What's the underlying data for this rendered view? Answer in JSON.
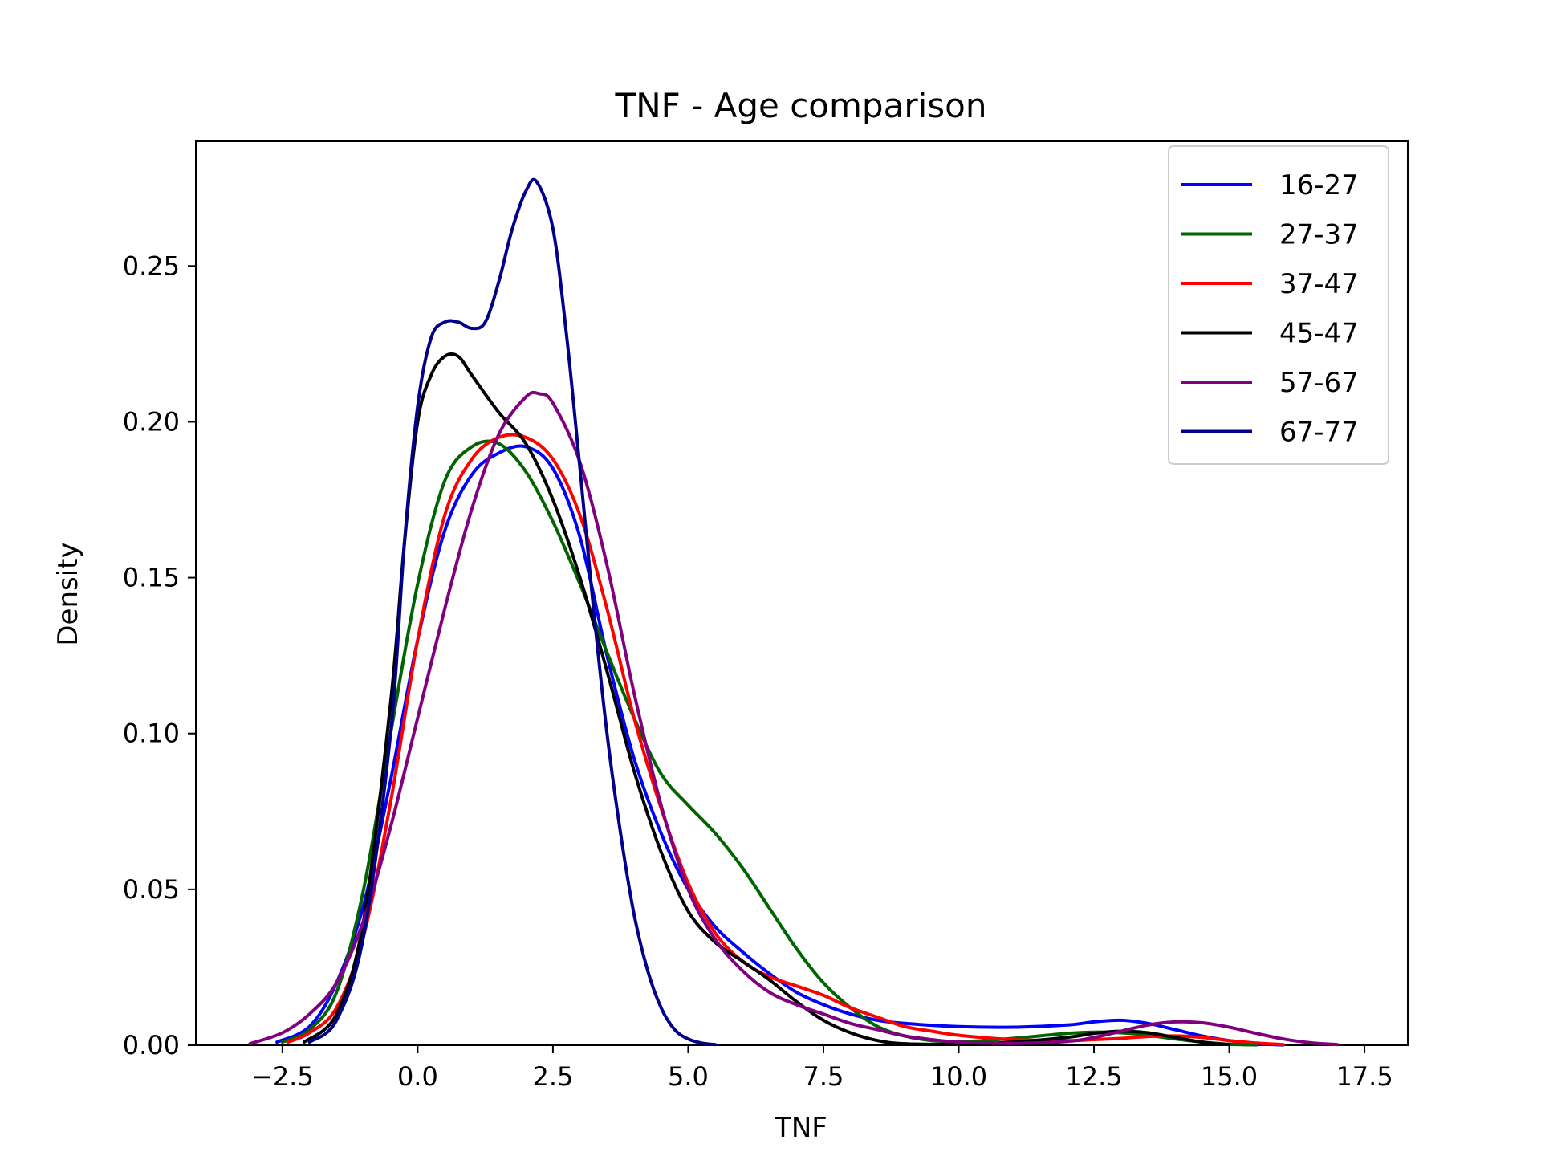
{
  "chart_data": {
    "type": "line",
    "title": "TNF - Age comparison",
    "xlabel": "TNF",
    "ylabel": "Density",
    "xlim": [
      -4.1,
      18.3
    ],
    "ylim": [
      0,
      0.29
    ],
    "xticks": [
      -2.5,
      0.0,
      2.5,
      5.0,
      7.5,
      10.0,
      12.5,
      15.0,
      17.5
    ],
    "xtick_labels": [
      "−2.5",
      "0.0",
      "2.5",
      "5.0",
      "7.5",
      "10.0",
      "12.5",
      "15.0",
      "17.5"
    ],
    "yticks": [
      0.0,
      0.05,
      0.1,
      0.15,
      0.2,
      0.25
    ],
    "ytick_labels": [
      "0.00",
      "0.05",
      "0.10",
      "0.15",
      "0.20",
      "0.25"
    ],
    "grid": false,
    "legend_position": "top-right",
    "series": [
      {
        "name": "16-27",
        "color": "#0000ff",
        "points": [
          [
            -2.6,
            0.001
          ],
          [
            -2.0,
            0.006
          ],
          [
            -1.5,
            0.02
          ],
          [
            -1.0,
            0.045
          ],
          [
            -0.5,
            0.085
          ],
          [
            0.0,
            0.13
          ],
          [
            0.5,
            0.165
          ],
          [
            1.0,
            0.183
          ],
          [
            1.5,
            0.19
          ],
          [
            2.0,
            0.192
          ],
          [
            2.5,
            0.185
          ],
          [
            3.0,
            0.163
          ],
          [
            3.5,
            0.125
          ],
          [
            4.0,
            0.092
          ],
          [
            4.5,
            0.068
          ],
          [
            5.0,
            0.05
          ],
          [
            5.5,
            0.038
          ],
          [
            6.0,
            0.03
          ],
          [
            6.5,
            0.023
          ],
          [
            7.0,
            0.017
          ],
          [
            7.5,
            0.013
          ],
          [
            8.0,
            0.01
          ],
          [
            8.5,
            0.008
          ],
          [
            9.0,
            0.007
          ],
          [
            10.0,
            0.006
          ],
          [
            11.0,
            0.0058
          ],
          [
            12.0,
            0.0065
          ],
          [
            12.5,
            0.0075
          ],
          [
            13.0,
            0.008
          ],
          [
            13.5,
            0.007
          ],
          [
            14.0,
            0.005
          ],
          [
            14.5,
            0.003
          ],
          [
            15.0,
            0.0015
          ],
          [
            15.5,
            0.0005
          ],
          [
            16.0,
            0.0001
          ]
        ]
      },
      {
        "name": "27-37",
        "color": "#006400",
        "points": [
          [
            -2.5,
            0.001
          ],
          [
            -2.0,
            0.005
          ],
          [
            -1.5,
            0.017
          ],
          [
            -1.0,
            0.05
          ],
          [
            -0.5,
            0.1
          ],
          [
            0.0,
            0.148
          ],
          [
            0.5,
            0.181
          ],
          [
            1.0,
            0.192
          ],
          [
            1.5,
            0.193
          ],
          [
            2.0,
            0.184
          ],
          [
            2.5,
            0.168
          ],
          [
            3.0,
            0.148
          ],
          [
            3.5,
            0.126
          ],
          [
            4.0,
            0.105
          ],
          [
            4.5,
            0.087
          ],
          [
            5.0,
            0.077
          ],
          [
            5.5,
            0.068
          ],
          [
            6.0,
            0.057
          ],
          [
            6.5,
            0.044
          ],
          [
            7.0,
            0.031
          ],
          [
            7.5,
            0.02
          ],
          [
            8.0,
            0.012
          ],
          [
            8.5,
            0.006
          ],
          [
            9.0,
            0.003
          ],
          [
            9.5,
            0.0015
          ],
          [
            10.0,
            0.0012
          ],
          [
            10.5,
            0.0015
          ],
          [
            11.0,
            0.0022
          ],
          [
            11.5,
            0.003
          ],
          [
            12.0,
            0.0038
          ],
          [
            12.5,
            0.0042
          ],
          [
            13.0,
            0.004
          ],
          [
            13.5,
            0.0032
          ],
          [
            14.0,
            0.002
          ],
          [
            14.5,
            0.001
          ],
          [
            15.0,
            0.0003
          ],
          [
            15.5,
            0.0001
          ]
        ]
      },
      {
        "name": "37-47",
        "color": "#ff0000",
        "points": [
          [
            -2.4,
            0.001
          ],
          [
            -2.0,
            0.004
          ],
          [
            -1.5,
            0.012
          ],
          [
            -1.0,
            0.035
          ],
          [
            -0.5,
            0.078
          ],
          [
            0.0,
            0.13
          ],
          [
            0.5,
            0.17
          ],
          [
            1.0,
            0.188
          ],
          [
            1.5,
            0.195
          ],
          [
            2.0,
            0.195
          ],
          [
            2.5,
            0.188
          ],
          [
            3.0,
            0.17
          ],
          [
            3.5,
            0.14
          ],
          [
            4.0,
            0.105
          ],
          [
            4.5,
            0.076
          ],
          [
            5.0,
            0.052
          ],
          [
            5.5,
            0.036
          ],
          [
            6.0,
            0.027
          ],
          [
            6.5,
            0.022
          ],
          [
            7.0,
            0.019
          ],
          [
            7.5,
            0.016
          ],
          [
            8.0,
            0.012
          ],
          [
            8.5,
            0.009
          ],
          [
            9.0,
            0.006
          ],
          [
            9.5,
            0.0045
          ],
          [
            10.0,
            0.0032
          ],
          [
            11.0,
            0.0018
          ],
          [
            12.0,
            0.0015
          ],
          [
            12.5,
            0.0018
          ],
          [
            13.0,
            0.0022
          ],
          [
            13.5,
            0.0028
          ],
          [
            14.0,
            0.003
          ],
          [
            14.5,
            0.0025
          ],
          [
            15.0,
            0.0015
          ],
          [
            15.5,
            0.0007
          ],
          [
            16.0,
            0.0002
          ]
        ]
      },
      {
        "name": "45-47",
        "color": "#000000",
        "points": [
          [
            -2.1,
            0.001
          ],
          [
            -1.5,
            0.01
          ],
          [
            -1.0,
            0.04
          ],
          [
            -0.5,
            0.11
          ],
          [
            -0.25,
            0.16
          ],
          [
            0.0,
            0.2
          ],
          [
            0.25,
            0.215
          ],
          [
            0.5,
            0.221
          ],
          [
            0.75,
            0.221
          ],
          [
            1.0,
            0.215
          ],
          [
            1.5,
            0.203
          ],
          [
            2.0,
            0.193
          ],
          [
            2.5,
            0.175
          ],
          [
            3.0,
            0.15
          ],
          [
            3.5,
            0.12
          ],
          [
            4.0,
            0.088
          ],
          [
            4.5,
            0.062
          ],
          [
            5.0,
            0.043
          ],
          [
            5.5,
            0.033
          ],
          [
            6.0,
            0.027
          ],
          [
            6.5,
            0.021
          ],
          [
            7.0,
            0.014
          ],
          [
            7.5,
            0.008
          ],
          [
            8.0,
            0.004
          ],
          [
            8.5,
            0.0015
          ],
          [
            9.0,
            0.0005
          ],
          [
            10.0,
            0.0003
          ],
          [
            11.0,
            0.001
          ],
          [
            12.0,
            0.0025
          ],
          [
            12.5,
            0.0038
          ],
          [
            13.0,
            0.0045
          ],
          [
            13.5,
            0.004
          ],
          [
            14.0,
            0.0025
          ],
          [
            14.5,
            0.001
          ],
          [
            15.0,
            0.0002
          ]
        ]
      },
      {
        "name": "57-67",
        "color": "#800080",
        "points": [
          [
            -3.1,
            0.0005
          ],
          [
            -2.5,
            0.004
          ],
          [
            -2.0,
            0.01
          ],
          [
            -1.5,
            0.02
          ],
          [
            -1.0,
            0.04
          ],
          [
            -0.5,
            0.07
          ],
          [
            0.0,
            0.105
          ],
          [
            0.5,
            0.14
          ],
          [
            1.0,
            0.172
          ],
          [
            1.5,
            0.196
          ],
          [
            2.0,
            0.208
          ],
          [
            2.25,
            0.209
          ],
          [
            2.5,
            0.206
          ],
          [
            3.0,
            0.187
          ],
          [
            3.5,
            0.154
          ],
          [
            4.0,
            0.113
          ],
          [
            4.5,
            0.077
          ],
          [
            5.0,
            0.05
          ],
          [
            5.5,
            0.034
          ],
          [
            6.0,
            0.024
          ],
          [
            6.5,
            0.017
          ],
          [
            7.0,
            0.013
          ],
          [
            7.5,
            0.01
          ],
          [
            8.0,
            0.007
          ],
          [
            8.5,
            0.005
          ],
          [
            9.0,
            0.003
          ],
          [
            9.5,
            0.0018
          ],
          [
            10.0,
            0.001
          ],
          [
            11.0,
            0.0006
          ],
          [
            12.0,
            0.0012
          ],
          [
            12.5,
            0.0025
          ],
          [
            13.0,
            0.0045
          ],
          [
            13.5,
            0.0065
          ],
          [
            14.0,
            0.0075
          ],
          [
            14.5,
            0.0072
          ],
          [
            15.0,
            0.0058
          ],
          [
            15.5,
            0.0038
          ],
          [
            16.0,
            0.002
          ],
          [
            16.5,
            0.0008
          ],
          [
            17.0,
            0.0002
          ]
        ]
      },
      {
        "name": "67-77",
        "color": "#00008b",
        "points": [
          [
            -2.0,
            0.001
          ],
          [
            -1.5,
            0.008
          ],
          [
            -1.0,
            0.035
          ],
          [
            -0.5,
            0.1
          ],
          [
            -0.25,
            0.16
          ],
          [
            0.0,
            0.205
          ],
          [
            0.25,
            0.227
          ],
          [
            0.5,
            0.232
          ],
          [
            0.75,
            0.232
          ],
          [
            1.0,
            0.23
          ],
          [
            1.25,
            0.232
          ],
          [
            1.5,
            0.245
          ],
          [
            1.75,
            0.262
          ],
          [
            2.0,
            0.274
          ],
          [
            2.2,
            0.277
          ],
          [
            2.5,
            0.262
          ],
          [
            2.75,
            0.228
          ],
          [
            3.0,
            0.185
          ],
          [
            3.25,
            0.14
          ],
          [
            3.5,
            0.1
          ],
          [
            3.75,
            0.068
          ],
          [
            4.0,
            0.042
          ],
          [
            4.25,
            0.024
          ],
          [
            4.5,
            0.012
          ],
          [
            4.75,
            0.005
          ],
          [
            5.0,
            0.002
          ],
          [
            5.25,
            0.0007
          ],
          [
            5.5,
            0.0002
          ]
        ]
      }
    ]
  }
}
